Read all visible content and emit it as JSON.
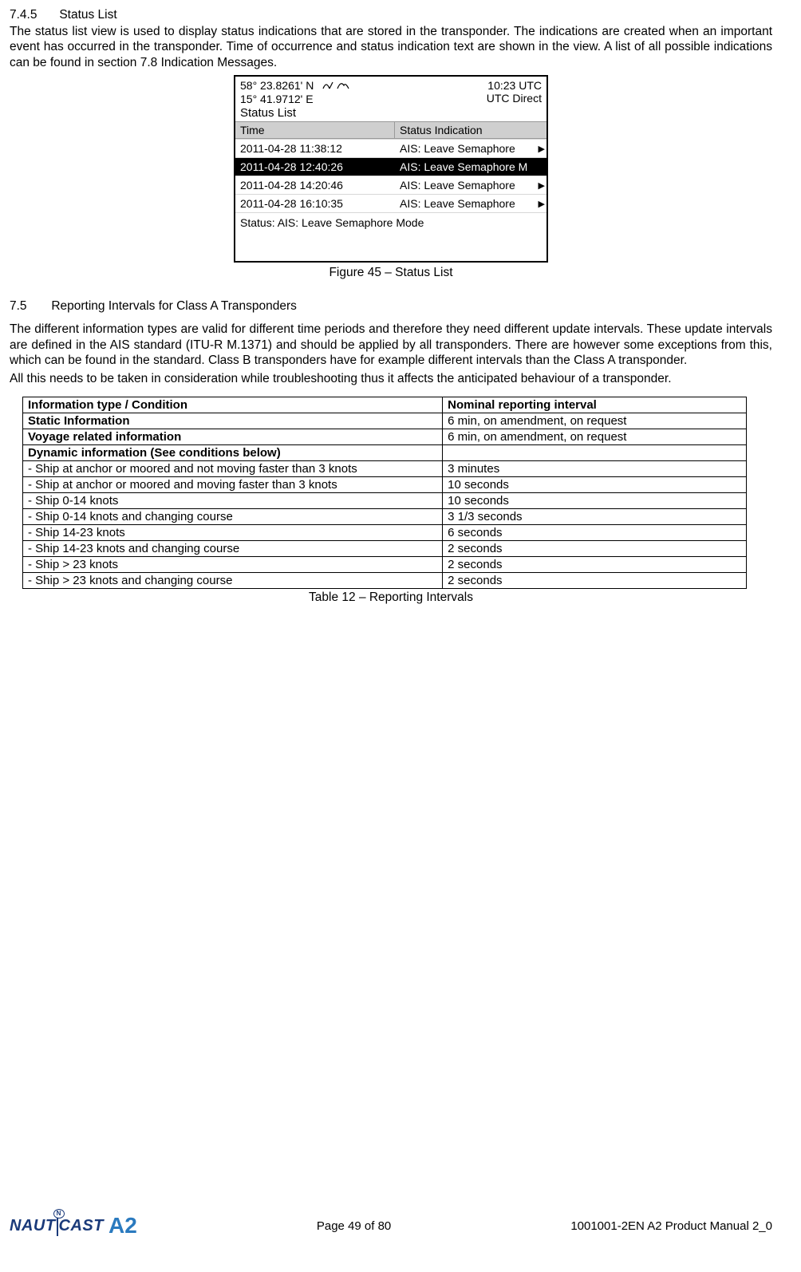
{
  "section745": {
    "number": "7.4.5",
    "title": "Status List",
    "paragraph": "The status list view is used to display status indications that are stored in the transponder. The indications are created when an important event has occurred in the transponder. Time of occurrence and status indication text are shown in the view. A list of all possible indications can be found in section 7.8 Indication Messages."
  },
  "device": {
    "lat": "58° 23.8261' N",
    "lon": "15° 41.9712' E",
    "time": "10:23 UTC",
    "timesrc": "UTC Direct",
    "title": "Status List",
    "col_time": "Time",
    "col_status": "Status Indication",
    "rows": [
      {
        "t": "2011-04-28 11:38:12",
        "s": "AIS: Leave Semaphore",
        "sel": false,
        "arrow": "▶"
      },
      {
        "t": "2011-04-28 12:40:26",
        "s": "AIS: Leave Semaphore M",
        "sel": true,
        "arrow": ""
      },
      {
        "t": "2011-04-28 14:20:46",
        "s": "AIS: Leave Semaphore",
        "sel": false,
        "arrow": "▶"
      },
      {
        "t": "2011-04-28 16:10:35",
        "s": "AIS: Leave Semaphore",
        "sel": false,
        "arrow": "▶"
      }
    ],
    "status_line": "Status: AIS: Leave Semaphore Mode"
  },
  "fig45": "Figure 45 – Status List",
  "section75": {
    "number": "7.5",
    "title": "Reporting Intervals for Class A Transponders",
    "p1": "The different information types are valid for different time periods and therefore they need different update intervals. These update intervals are defined in the AIS standard (ITU-R M.1371) and should be applied by all transponders. There are however some exceptions from this, which can be found in the standard. Class B transponders have for example different intervals than the Class A transponder.",
    "p2": "All this needs to be taken in consideration while troubleshooting thus it affects the anticipated behaviour of a transponder."
  },
  "table": {
    "h1": "Information type / Condition",
    "h2": "Nominal reporting interval",
    "rows": [
      {
        "c1": "Static Information",
        "c2": "6 min, on amendment, on request",
        "b1": true
      },
      {
        "c1": "Voyage related information",
        "c2": "6 min, on amendment, on request",
        "b1": true
      },
      {
        "c1": "Dynamic information (See conditions below)",
        "c2": "",
        "b1": true
      },
      {
        "c1": "- Ship at anchor or moored and not moving faster than 3 knots",
        "c2": "3 minutes",
        "b1": false
      },
      {
        "c1": "- Ship at anchor or moored and moving faster than 3 knots",
        "c2": "10 seconds",
        "b1": false
      },
      {
        "c1": "- Ship 0-14 knots",
        "c2": "10 seconds",
        "b1": false
      },
      {
        "c1": "- Ship 0-14 knots and changing course",
        "c2": "3 1/3 seconds",
        "b1": false
      },
      {
        "c1": "- Ship 14-23 knots",
        "c2": "6 seconds",
        "b1": false
      },
      {
        "c1": "- Ship 14-23 knots and changing course",
        "c2": "2 seconds",
        "b1": false
      },
      {
        "c1": "- Ship > 23 knots",
        "c2": "2 seconds",
        "b1": false
      },
      {
        "c1": "- Ship > 23 knots and changing course",
        "c2": "2 seconds",
        "b1": false
      }
    ],
    "caption": "Table 12 – Reporting Intervals"
  },
  "footer": {
    "page": "Page 49 of 80",
    "docid": "1001001-2EN A2 Product Manual 2_0",
    "logo_naut": "NAUT",
    "logo_cast": "CAST",
    "logo_a2": "A2"
  }
}
